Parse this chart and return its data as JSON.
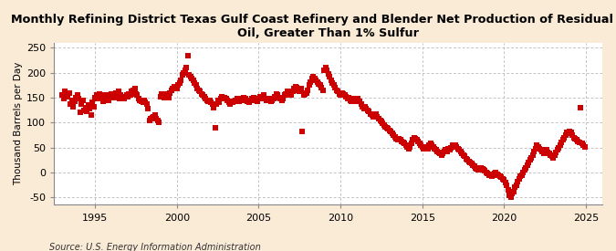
{
  "title": "Monthly Refining District Texas Gulf Coast Refinery and Blender Net Production of Residual Fuel\nOil, Greater Than 1% Sulfur",
  "ylabel": "Thousand Barrels per Day",
  "source": "Source: U.S. Energy Information Administration",
  "background_color": "#faebd7",
  "plot_background": "#ffffff",
  "dot_color": "#cc0000",
  "dot_size": 14,
  "xlim": [
    1992.5,
    2026.0
  ],
  "ylim": [
    -65,
    260
  ],
  "yticks": [
    -50,
    0,
    50,
    100,
    150,
    200,
    250
  ],
  "xticks": [
    1995,
    2000,
    2005,
    2010,
    2015,
    2020,
    2025
  ],
  "grid_color": "#aaaaaa",
  "title_fontsize": 9.2,
  "ylabel_fontsize": 7.5,
  "tick_fontsize": 8,
  "data_points": [
    [
      1993.0,
      155
    ],
    [
      1993.08,
      148
    ],
    [
      1993.17,
      162
    ],
    [
      1993.25,
      158
    ],
    [
      1993.33,
      152
    ],
    [
      1993.42,
      160
    ],
    [
      1993.5,
      138
    ],
    [
      1993.58,
      145
    ],
    [
      1993.67,
      132
    ],
    [
      1993.75,
      143
    ],
    [
      1993.83,
      150
    ],
    [
      1993.92,
      155
    ],
    [
      1994.0,
      148
    ],
    [
      1994.08,
      120
    ],
    [
      1994.17,
      138
    ],
    [
      1994.25,
      145
    ],
    [
      1994.33,
      125
    ],
    [
      1994.42,
      130
    ],
    [
      1994.5,
      122
    ],
    [
      1994.58,
      135
    ],
    [
      1994.67,
      128
    ],
    [
      1994.75,
      115
    ],
    [
      1994.83,
      140
    ],
    [
      1994.92,
      132
    ],
    [
      1995.0,
      150
    ],
    [
      1995.08,
      155
    ],
    [
      1995.17,
      148
    ],
    [
      1995.25,
      158
    ],
    [
      1995.33,
      148
    ],
    [
      1995.42,
      155
    ],
    [
      1995.5,
      143
    ],
    [
      1995.58,
      150
    ],
    [
      1995.67,
      148
    ],
    [
      1995.75,
      155
    ],
    [
      1995.83,
      145
    ],
    [
      1995.92,
      152
    ],
    [
      1996.0,
      158
    ],
    [
      1996.08,
      155
    ],
    [
      1996.17,
      150
    ],
    [
      1996.25,
      160
    ],
    [
      1996.33,
      155
    ],
    [
      1996.42,
      162
    ],
    [
      1996.5,
      148
    ],
    [
      1996.58,
      155
    ],
    [
      1996.67,
      150
    ],
    [
      1996.75,
      148
    ],
    [
      1996.83,
      152
    ],
    [
      1996.92,
      155
    ],
    [
      1997.0,
      152
    ],
    [
      1997.08,
      158
    ],
    [
      1997.17,
      155
    ],
    [
      1997.25,
      162
    ],
    [
      1997.33,
      165
    ],
    [
      1997.42,
      168
    ],
    [
      1997.5,
      158
    ],
    [
      1997.58,
      155
    ],
    [
      1997.67,
      148
    ],
    [
      1997.75,
      145
    ],
    [
      1997.83,
      142
    ],
    [
      1997.92,
      140
    ],
    [
      1998.0,
      145
    ],
    [
      1998.08,
      140
    ],
    [
      1998.17,
      138
    ],
    [
      1998.25,
      128
    ],
    [
      1998.33,
      105
    ],
    [
      1998.42,
      108
    ],
    [
      1998.5,
      110
    ],
    [
      1998.58,
      112
    ],
    [
      1998.67,
      115
    ],
    [
      1998.75,
      108
    ],
    [
      1998.83,
      105
    ],
    [
      1998.92,
      100
    ],
    [
      1999.0,
      152
    ],
    [
      1999.08,
      158
    ],
    [
      1999.17,
      155
    ],
    [
      1999.25,
      150
    ],
    [
      1999.33,
      158
    ],
    [
      1999.42,
      155
    ],
    [
      1999.5,
      150
    ],
    [
      1999.58,
      160
    ],
    [
      1999.67,
      165
    ],
    [
      1999.75,
      168
    ],
    [
      1999.83,
      172
    ],
    [
      1999.92,
      170
    ],
    [
      2000.0,
      168
    ],
    [
      2000.08,
      175
    ],
    [
      2000.17,
      180
    ],
    [
      2000.25,
      185
    ],
    [
      2000.33,
      195
    ],
    [
      2000.42,
      200
    ],
    [
      2000.5,
      205
    ],
    [
      2000.58,
      210
    ],
    [
      2000.67,
      235
    ],
    [
      2000.75,
      195
    ],
    [
      2000.83,
      192
    ],
    [
      2000.92,
      188
    ],
    [
      2001.0,
      185
    ],
    [
      2001.08,
      180
    ],
    [
      2001.17,
      175
    ],
    [
      2001.25,
      168
    ],
    [
      2001.33,
      165
    ],
    [
      2001.42,
      162
    ],
    [
      2001.5,
      158
    ],
    [
      2001.58,
      155
    ],
    [
      2001.67,
      152
    ],
    [
      2001.75,
      148
    ],
    [
      2001.83,
      145
    ],
    [
      2001.92,
      142
    ],
    [
      2002.0,
      145
    ],
    [
      2002.08,
      140
    ],
    [
      2002.17,
      138
    ],
    [
      2002.25,
      130
    ],
    [
      2002.33,
      90
    ],
    [
      2002.42,
      138
    ],
    [
      2002.5,
      145
    ],
    [
      2002.58,
      140
    ],
    [
      2002.67,
      148
    ],
    [
      2002.75,
      152
    ],
    [
      2002.83,
      148
    ],
    [
      2002.92,
      150
    ],
    [
      2003.0,
      148
    ],
    [
      2003.08,
      145
    ],
    [
      2003.17,
      140
    ],
    [
      2003.25,
      138
    ],
    [
      2003.33,
      142
    ],
    [
      2003.42,
      140
    ],
    [
      2003.5,
      142
    ],
    [
      2003.58,
      145
    ],
    [
      2003.67,
      148
    ],
    [
      2003.75,
      145
    ],
    [
      2003.83,
      142
    ],
    [
      2003.92,
      145
    ],
    [
      2004.0,
      148
    ],
    [
      2004.08,
      150
    ],
    [
      2004.17,
      148
    ],
    [
      2004.25,
      145
    ],
    [
      2004.33,
      142
    ],
    [
      2004.42,
      140
    ],
    [
      2004.5,
      145
    ],
    [
      2004.58,
      148
    ],
    [
      2004.67,
      150
    ],
    [
      2004.75,
      148
    ],
    [
      2004.83,
      145
    ],
    [
      2004.92,
      142
    ],
    [
      2005.0,
      148
    ],
    [
      2005.08,
      152
    ],
    [
      2005.17,
      150
    ],
    [
      2005.25,
      148
    ],
    [
      2005.33,
      155
    ],
    [
      2005.42,
      148
    ],
    [
      2005.5,
      145
    ],
    [
      2005.58,
      148
    ],
    [
      2005.67,
      145
    ],
    [
      2005.75,
      142
    ],
    [
      2005.83,
      145
    ],
    [
      2005.92,
      148
    ],
    [
      2006.0,
      152
    ],
    [
      2006.08,
      158
    ],
    [
      2006.17,
      155
    ],
    [
      2006.25,
      150
    ],
    [
      2006.33,
      148
    ],
    [
      2006.42,
      145
    ],
    [
      2006.5,
      148
    ],
    [
      2006.58,
      155
    ],
    [
      2006.67,
      158
    ],
    [
      2006.75,
      162
    ],
    [
      2006.83,
      158
    ],
    [
      2006.92,
      155
    ],
    [
      2007.0,
      155
    ],
    [
      2007.08,
      162
    ],
    [
      2007.17,
      168
    ],
    [
      2007.25,
      172
    ],
    [
      2007.33,
      170
    ],
    [
      2007.42,
      165
    ],
    [
      2007.5,
      162
    ],
    [
      2007.58,
      168
    ],
    [
      2007.67,
      82
    ],
    [
      2007.75,
      155
    ],
    [
      2007.83,
      158
    ],
    [
      2007.92,
      160
    ],
    [
      2008.0,
      165
    ],
    [
      2008.08,
      175
    ],
    [
      2008.17,
      182
    ],
    [
      2008.25,
      188
    ],
    [
      2008.33,
      192
    ],
    [
      2008.42,
      188
    ],
    [
      2008.5,
      185
    ],
    [
      2008.58,
      182
    ],
    [
      2008.67,
      178
    ],
    [
      2008.75,
      175
    ],
    [
      2008.83,
      170
    ],
    [
      2008.92,
      165
    ],
    [
      2009.0,
      205
    ],
    [
      2009.08,
      210
    ],
    [
      2009.17,
      205
    ],
    [
      2009.25,
      198
    ],
    [
      2009.33,
      192
    ],
    [
      2009.42,
      185
    ],
    [
      2009.5,
      180
    ],
    [
      2009.58,
      175
    ],
    [
      2009.67,
      170
    ],
    [
      2009.75,
      165
    ],
    [
      2009.83,
      162
    ],
    [
      2009.92,
      158
    ],
    [
      2010.0,
      155
    ],
    [
      2010.08,
      160
    ],
    [
      2010.17,
      158
    ],
    [
      2010.25,
      155
    ],
    [
      2010.33,
      152
    ],
    [
      2010.42,
      148
    ],
    [
      2010.5,
      150
    ],
    [
      2010.58,
      145
    ],
    [
      2010.67,
      142
    ],
    [
      2010.75,
      148
    ],
    [
      2010.83,
      145
    ],
    [
      2010.92,
      142
    ],
    [
      2011.0,
      145
    ],
    [
      2011.08,
      148
    ],
    [
      2011.17,
      142
    ],
    [
      2011.25,
      138
    ],
    [
      2011.33,
      132
    ],
    [
      2011.42,
      128
    ],
    [
      2011.5,
      132
    ],
    [
      2011.58,
      128
    ],
    [
      2011.67,
      125
    ],
    [
      2011.75,
      122
    ],
    [
      2011.83,
      118
    ],
    [
      2011.92,
      115
    ],
    [
      2012.0,
      112
    ],
    [
      2012.08,
      115
    ],
    [
      2012.17,
      118
    ],
    [
      2012.25,
      112
    ],
    [
      2012.33,
      108
    ],
    [
      2012.42,
      105
    ],
    [
      2012.5,
      102
    ],
    [
      2012.58,
      98
    ],
    [
      2012.67,
      95
    ],
    [
      2012.75,
      92
    ],
    [
      2012.83,
      90
    ],
    [
      2012.92,
      88
    ],
    [
      2013.0,
      85
    ],
    [
      2013.08,
      82
    ],
    [
      2013.17,
      78
    ],
    [
      2013.25,
      75
    ],
    [
      2013.33,
      72
    ],
    [
      2013.42,
      68
    ],
    [
      2013.5,
      65
    ],
    [
      2013.58,
      68
    ],
    [
      2013.67,
      65
    ],
    [
      2013.75,
      62
    ],
    [
      2013.83,
      60
    ],
    [
      2013.92,
      58
    ],
    [
      2014.0,
      55
    ],
    [
      2014.08,
      52
    ],
    [
      2014.17,
      48
    ],
    [
      2014.25,
      52
    ],
    [
      2014.33,
      58
    ],
    [
      2014.42,
      65
    ],
    [
      2014.5,
      70
    ],
    [
      2014.58,
      68
    ],
    [
      2014.67,
      65
    ],
    [
      2014.75,
      62
    ],
    [
      2014.83,
      58
    ],
    [
      2014.92,
      55
    ],
    [
      2015.0,
      52
    ],
    [
      2015.08,
      48
    ],
    [
      2015.17,
      50
    ],
    [
      2015.25,
      52
    ],
    [
      2015.33,
      48
    ],
    [
      2015.42,
      55
    ],
    [
      2015.5,
      58
    ],
    [
      2015.58,
      55
    ],
    [
      2015.67,
      52
    ],
    [
      2015.75,
      48
    ],
    [
      2015.83,
      45
    ],
    [
      2015.92,
      42
    ],
    [
      2016.0,
      40
    ],
    [
      2016.08,
      38
    ],
    [
      2016.17,
      35
    ],
    [
      2016.25,
      38
    ],
    [
      2016.33,
      42
    ],
    [
      2016.42,
      45
    ],
    [
      2016.5,
      42
    ],
    [
      2016.58,
      48
    ],
    [
      2016.67,
      45
    ],
    [
      2016.75,
      50
    ],
    [
      2016.83,
      55
    ],
    [
      2016.92,
      52
    ],
    [
      2017.0,
      55
    ],
    [
      2017.08,
      52
    ],
    [
      2017.17,
      48
    ],
    [
      2017.25,
      45
    ],
    [
      2017.33,
      42
    ],
    [
      2017.42,
      38
    ],
    [
      2017.5,
      35
    ],
    [
      2017.58,
      32
    ],
    [
      2017.67,
      28
    ],
    [
      2017.75,
      25
    ],
    [
      2017.83,
      22
    ],
    [
      2017.92,
      20
    ],
    [
      2018.0,
      18
    ],
    [
      2018.08,
      15
    ],
    [
      2018.17,
      12
    ],
    [
      2018.25,
      10
    ],
    [
      2018.33,
      8
    ],
    [
      2018.42,
      5
    ],
    [
      2018.5,
      8
    ],
    [
      2018.58,
      10
    ],
    [
      2018.67,
      8
    ],
    [
      2018.75,
      5
    ],
    [
      2018.83,
      3
    ],
    [
      2018.92,
      0
    ],
    [
      2019.0,
      -2
    ],
    [
      2019.08,
      -5
    ],
    [
      2019.17,
      -3
    ],
    [
      2019.25,
      -8
    ],
    [
      2019.33,
      -5
    ],
    [
      2019.42,
      -2
    ],
    [
      2019.5,
      0
    ],
    [
      2019.58,
      -3
    ],
    [
      2019.67,
      -5
    ],
    [
      2019.75,
      -8
    ],
    [
      2019.83,
      -10
    ],
    [
      2019.92,
      -12
    ],
    [
      2020.0,
      -15
    ],
    [
      2020.08,
      -20
    ],
    [
      2020.17,
      -25
    ],
    [
      2020.25,
      -35
    ],
    [
      2020.33,
      -45
    ],
    [
      2020.42,
      -50
    ],
    [
      2020.5,
      -42
    ],
    [
      2020.58,
      -38
    ],
    [
      2020.67,
      -30
    ],
    [
      2020.75,
      -25
    ],
    [
      2020.83,
      -18
    ],
    [
      2020.92,
      -12
    ],
    [
      2021.0,
      -8
    ],
    [
      2021.08,
      -5
    ],
    [
      2021.17,
      0
    ],
    [
      2021.25,
      5
    ],
    [
      2021.33,
      10
    ],
    [
      2021.42,
      15
    ],
    [
      2021.5,
      20
    ],
    [
      2021.58,
      25
    ],
    [
      2021.67,
      30
    ],
    [
      2021.75,
      35
    ],
    [
      2021.83,
      42
    ],
    [
      2021.92,
      48
    ],
    [
      2022.0,
      55
    ],
    [
      2022.08,
      52
    ],
    [
      2022.17,
      48
    ],
    [
      2022.25,
      45
    ],
    [
      2022.33,
      42
    ],
    [
      2022.42,
      38
    ],
    [
      2022.5,
      42
    ],
    [
      2022.58,
      45
    ],
    [
      2022.67,
      40
    ],
    [
      2022.75,
      38
    ],
    [
      2022.83,
      35
    ],
    [
      2022.92,
      32
    ],
    [
      2023.0,
      30
    ],
    [
      2023.08,
      35
    ],
    [
      2023.17,
      40
    ],
    [
      2023.25,
      45
    ],
    [
      2023.33,
      50
    ],
    [
      2023.42,
      55
    ],
    [
      2023.5,
      60
    ],
    [
      2023.58,
      65
    ],
    [
      2023.67,
      70
    ],
    [
      2023.75,
      75
    ],
    [
      2023.83,
      80
    ],
    [
      2023.92,
      78
    ],
    [
      2024.0,
      82
    ],
    [
      2024.08,
      80
    ],
    [
      2024.17,
      75
    ],
    [
      2024.25,
      70
    ],
    [
      2024.33,
      68
    ],
    [
      2024.42,
      65
    ],
    [
      2024.5,
      62
    ],
    [
      2024.58,
      60
    ],
    [
      2024.67,
      130
    ],
    [
      2024.75,
      58
    ],
    [
      2024.83,
      55
    ],
    [
      2024.92,
      52
    ]
  ]
}
